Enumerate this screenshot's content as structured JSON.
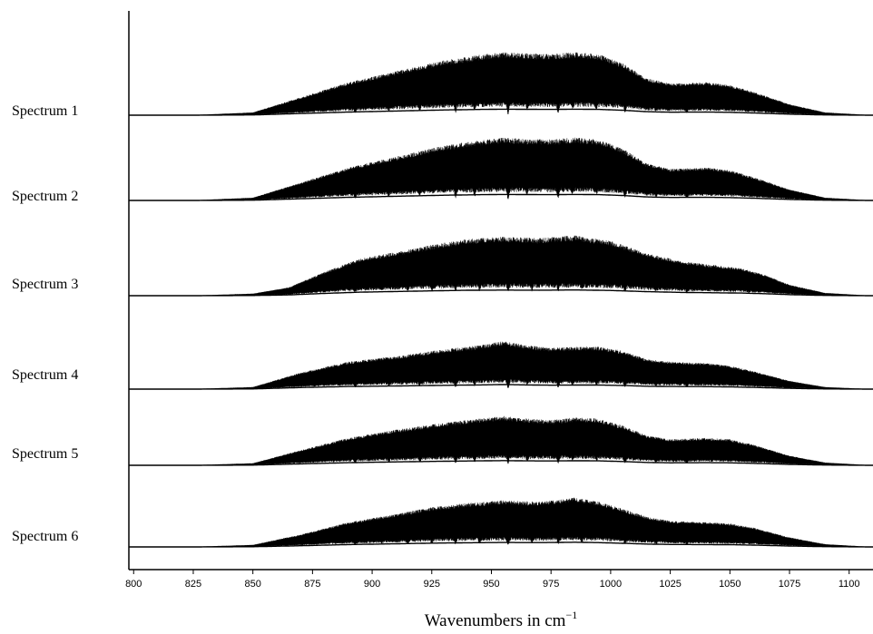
{
  "chart_data": {
    "type": "line",
    "title": "",
    "xlabel": "Wavenumbers in cm",
    "xlabel_superscript": "−1",
    "ylabel": "",
    "xlim": [
      798,
      1110
    ],
    "x_ticks": [
      800,
      825,
      850,
      875,
      900,
      925,
      950,
      975,
      1000,
      1025,
      1050,
      1075,
      1100
    ],
    "grid": false,
    "legend": "none",
    "line_color": "#000000",
    "series": [
      {
        "name": "Spectrum 1",
        "envelope": [
          [
            800,
            0
          ],
          [
            825,
            0.3
          ],
          [
            850,
            4
          ],
          [
            870,
            26
          ],
          [
            890,
            48
          ],
          [
            910,
            64
          ],
          [
            930,
            80
          ],
          [
            945,
            88
          ],
          [
            955,
            92
          ],
          [
            965,
            90
          ],
          [
            975,
            89
          ],
          [
            985,
            92
          ],
          [
            995,
            89
          ],
          [
            1005,
            76
          ],
          [
            1015,
            54
          ],
          [
            1025,
            46
          ],
          [
            1040,
            48
          ],
          [
            1050,
            44
          ],
          [
            1060,
            34
          ],
          [
            1075,
            16
          ],
          [
            1090,
            4
          ],
          [
            1110,
            0
          ]
        ],
        "dips": [
          [
            893,
            0.55
          ],
          [
            907,
            0.35
          ],
          [
            920,
            0.4
          ],
          [
            935,
            0.7
          ],
          [
            943,
            0.5
          ],
          [
            957,
            0.9
          ],
          [
            965,
            0.4
          ],
          [
            978,
            0.75
          ],
          [
            984,
            0.35
          ],
          [
            994,
            0.35
          ],
          [
            1006,
            0.6
          ],
          [
            1019,
            0.3
          ],
          [
            1032,
            0.5
          ]
        ]
      },
      {
        "name": "Spectrum 2",
        "envelope": [
          [
            800,
            0
          ],
          [
            825,
            0.3
          ],
          [
            850,
            4
          ],
          [
            870,
            26
          ],
          [
            890,
            48
          ],
          [
            910,
            64
          ],
          [
            930,
            80
          ],
          [
            945,
            88
          ],
          [
            955,
            92
          ],
          [
            965,
            90
          ],
          [
            975,
            89
          ],
          [
            985,
            92
          ],
          [
            995,
            89
          ],
          [
            1005,
            76
          ],
          [
            1015,
            54
          ],
          [
            1025,
            46
          ],
          [
            1040,
            48
          ],
          [
            1050,
            44
          ],
          [
            1060,
            34
          ],
          [
            1075,
            16
          ],
          [
            1090,
            4
          ],
          [
            1110,
            0
          ]
        ],
        "dips": [
          [
            893,
            0.55
          ],
          [
            907,
            0.35
          ],
          [
            920,
            0.4
          ],
          [
            935,
            0.7
          ],
          [
            943,
            0.5
          ],
          [
            957,
            0.9
          ],
          [
            965,
            0.4
          ],
          [
            978,
            0.75
          ],
          [
            984,
            0.35
          ],
          [
            994,
            0.35
          ],
          [
            1006,
            0.6
          ],
          [
            1019,
            0.3
          ],
          [
            1032,
            0.5
          ]
        ]
      },
      {
        "name": "Spectrum 3",
        "envelope": [
          [
            800,
            0
          ],
          [
            825,
            0.3
          ],
          [
            850,
            3
          ],
          [
            865,
            12
          ],
          [
            880,
            35
          ],
          [
            895,
            54
          ],
          [
            910,
            64
          ],
          [
            925,
            74
          ],
          [
            940,
            83
          ],
          [
            955,
            86
          ],
          [
            970,
            84
          ],
          [
            985,
            88
          ],
          [
            1000,
            80
          ],
          [
            1015,
            62
          ],
          [
            1030,
            50
          ],
          [
            1045,
            44
          ],
          [
            1055,
            40
          ],
          [
            1065,
            30
          ],
          [
            1075,
            16
          ],
          [
            1090,
            4
          ],
          [
            1110,
            0
          ]
        ],
        "dips": [
          [
            893,
            0.3
          ],
          [
            904,
            0.3
          ],
          [
            915,
            0.35
          ],
          [
            925,
            0.35
          ],
          [
            935,
            0.45
          ],
          [
            945,
            0.4
          ],
          [
            957,
            0.6
          ],
          [
            967,
            0.45
          ],
          [
            978,
            0.5
          ],
          [
            988,
            0.35
          ],
          [
            1006,
            0.4
          ],
          [
            1019,
            0.25
          ],
          [
            1032,
            0.35
          ],
          [
            1058,
            0.3
          ]
        ]
      },
      {
        "name": "Spectrum 4",
        "envelope": [
          [
            800,
            0
          ],
          [
            825,
            0.3
          ],
          [
            850,
            3
          ],
          [
            870,
            24
          ],
          [
            890,
            40
          ],
          [
            910,
            48
          ],
          [
            930,
            58
          ],
          [
            945,
            64
          ],
          [
            955,
            70
          ],
          [
            965,
            64
          ],
          [
            975,
            60
          ],
          [
            985,
            62
          ],
          [
            995,
            62
          ],
          [
            1005,
            56
          ],
          [
            1015,
            44
          ],
          [
            1025,
            40
          ],
          [
            1040,
            38
          ],
          [
            1050,
            34
          ],
          [
            1060,
            26
          ],
          [
            1075,
            12
          ],
          [
            1090,
            3
          ],
          [
            1110,
            0
          ]
        ],
        "dips": [
          [
            893,
            0.55
          ],
          [
            907,
            0.35
          ],
          [
            920,
            0.4
          ],
          [
            935,
            0.7
          ],
          [
            943,
            0.5
          ],
          [
            957,
            0.9
          ],
          [
            965,
            0.4
          ],
          [
            978,
            0.75
          ],
          [
            984,
            0.35
          ],
          [
            994,
            0.35
          ],
          [
            1006,
            0.6
          ],
          [
            1019,
            0.3
          ],
          [
            1032,
            0.5
          ]
        ]
      },
      {
        "name": "Spectrum 5",
        "envelope": [
          [
            800,
            0
          ],
          [
            825,
            0.3
          ],
          [
            850,
            3
          ],
          [
            870,
            22
          ],
          [
            890,
            40
          ],
          [
            910,
            52
          ],
          [
            930,
            62
          ],
          [
            945,
            68
          ],
          [
            955,
            72
          ],
          [
            965,
            68
          ],
          [
            975,
            66
          ],
          [
            985,
            70
          ],
          [
            995,
            68
          ],
          [
            1005,
            58
          ],
          [
            1015,
            44
          ],
          [
            1025,
            38
          ],
          [
            1040,
            40
          ],
          [
            1050,
            38
          ],
          [
            1060,
            30
          ],
          [
            1075,
            14
          ],
          [
            1090,
            4
          ],
          [
            1110,
            0
          ]
        ],
        "dips": [
          [
            893,
            0.5
          ],
          [
            907,
            0.35
          ],
          [
            920,
            0.4
          ],
          [
            935,
            0.65
          ],
          [
            943,
            0.5
          ],
          [
            957,
            0.85
          ],
          [
            965,
            0.45
          ],
          [
            978,
            0.7
          ],
          [
            984,
            0.4
          ],
          [
            994,
            0.35
          ],
          [
            1006,
            0.55
          ],
          [
            1019,
            0.3
          ],
          [
            1032,
            0.45
          ]
        ]
      },
      {
        "name": "Spectrum 6",
        "envelope": [
          [
            800,
            0
          ],
          [
            825,
            0.3
          ],
          [
            850,
            3
          ],
          [
            870,
            18
          ],
          [
            890,
            36
          ],
          [
            910,
            48
          ],
          [
            925,
            58
          ],
          [
            940,
            64
          ],
          [
            955,
            68
          ],
          [
            970,
            66
          ],
          [
            985,
            72
          ],
          [
            995,
            66
          ],
          [
            1005,
            56
          ],
          [
            1015,
            44
          ],
          [
            1025,
            38
          ],
          [
            1040,
            36
          ],
          [
            1050,
            34
          ],
          [
            1060,
            28
          ],
          [
            1075,
            14
          ],
          [
            1090,
            4
          ],
          [
            1110,
            0
          ]
        ],
        "dips": [
          [
            893,
            0.4
          ],
          [
            904,
            0.35
          ],
          [
            915,
            0.4
          ],
          [
            925,
            0.4
          ],
          [
            935,
            0.55
          ],
          [
            945,
            0.45
          ],
          [
            957,
            0.75
          ],
          [
            967,
            0.45
          ],
          [
            978,
            0.6
          ],
          [
            988,
            0.4
          ],
          [
            1006,
            0.45
          ],
          [
            1019,
            0.3
          ],
          [
            1032,
            0.4
          ]
        ]
      }
    ]
  }
}
